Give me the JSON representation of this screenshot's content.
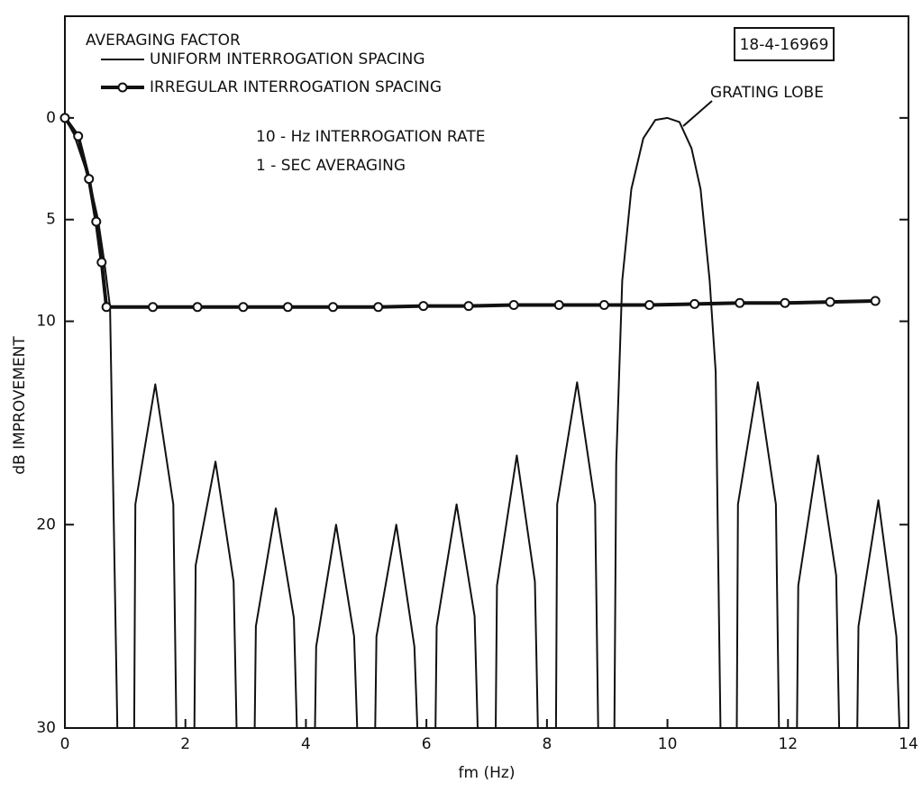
{
  "chart_data": {
    "type": "line",
    "legend_title": "AVERAGING FACTOR",
    "x_label": "fm (Hz)",
    "y_label": "dB IMPROVEMENT",
    "xlim": [
      0,
      14
    ],
    "xticks": [
      0,
      2,
      4,
      6,
      8,
      10,
      12,
      14
    ],
    "ylim": [
      -5,
      30
    ],
    "yticks": [
      0,
      5,
      10,
      20,
      30
    ],
    "y_inverted": true,
    "grid": false,
    "legend_position": "top-left",
    "annotations": {
      "rate": "10 - Hz INTERROGATION RATE",
      "averaging": "1 - SEC AVERAGING",
      "figure_id": "18-4-16969",
      "grating_lobe": "GRATING LOBE"
    },
    "series": [
      {
        "name": "UNIFORM INTERROGATION SPACING",
        "color": "#111111",
        "marker": "none",
        "width": 2,
        "x": [
          0,
          0.15,
          0.4,
          0.55,
          0.65,
          0.75,
          0.87,
          1.15,
          1.17,
          1.5,
          1.8,
          1.85,
          2.15,
          2.17,
          2.5,
          2.8,
          2.85,
          3.15,
          3.17,
          3.5,
          3.8,
          3.85,
          4.15,
          4.17,
          4.5,
          4.8,
          4.85,
          5.15,
          5.17,
          5.5,
          5.8,
          5.85,
          6.15,
          6.17,
          6.5,
          6.8,
          6.85,
          7.15,
          7.17,
          7.5,
          7.8,
          7.85,
          8.15,
          8.17,
          8.5,
          8.8,
          8.85,
          9.12,
          9.15,
          9.25,
          9.4,
          9.6,
          9.8,
          10,
          10.2,
          10.4,
          10.55,
          10.7,
          10.8,
          10.88,
          11.15,
          11.17,
          11.5,
          11.8,
          11.85,
          12.15,
          12.17,
          12.5,
          12.8,
          12.85,
          13.15,
          13.17,
          13.5,
          13.8,
          13.85,
          14
        ],
        "values": [
          0,
          0.8,
          3,
          5,
          7,
          9.3,
          30,
          30,
          19,
          13.1,
          19,
          30,
          30,
          22,
          16.9,
          22.8,
          30,
          30,
          25,
          19.2,
          24.6,
          30,
          30,
          26,
          20,
          25.5,
          30,
          30,
          25.5,
          20,
          26,
          30,
          30,
          25,
          19,
          24.5,
          30,
          30,
          23,
          16.6,
          22.8,
          30,
          30,
          19,
          13,
          19,
          30,
          30,
          17,
          8,
          3.5,
          1,
          0.1,
          0,
          0.2,
          1.5,
          3.5,
          8,
          12.5,
          30,
          30,
          19,
          13,
          19,
          30,
          30,
          23,
          16.6,
          22.5,
          30,
          30,
          25,
          18.8,
          25.5,
          30,
          30
        ]
      },
      {
        "name": "IRREGULAR INTERROGATION SPACING",
        "color": "#111111",
        "marker": "circle",
        "width": 4,
        "x": [
          0,
          0.22,
          0.4,
          0.52,
          0.61,
          0.69,
          1.46,
          2.2,
          2.96,
          3.7,
          4.45,
          5.2,
          5.95,
          6.7,
          7.45,
          8.2,
          8.95,
          9.7,
          10.45,
          11.2,
          11.95,
          12.7,
          13.45
        ],
        "values": [
          0,
          0.9,
          3,
          5.1,
          7.1,
          9.3,
          9.3,
          9.3,
          9.3,
          9.3,
          9.3,
          9.3,
          9.25,
          9.25,
          9.2,
          9.2,
          9.2,
          9.2,
          9.15,
          9.1,
          9.1,
          9.05,
          9.0
        ]
      }
    ]
  }
}
